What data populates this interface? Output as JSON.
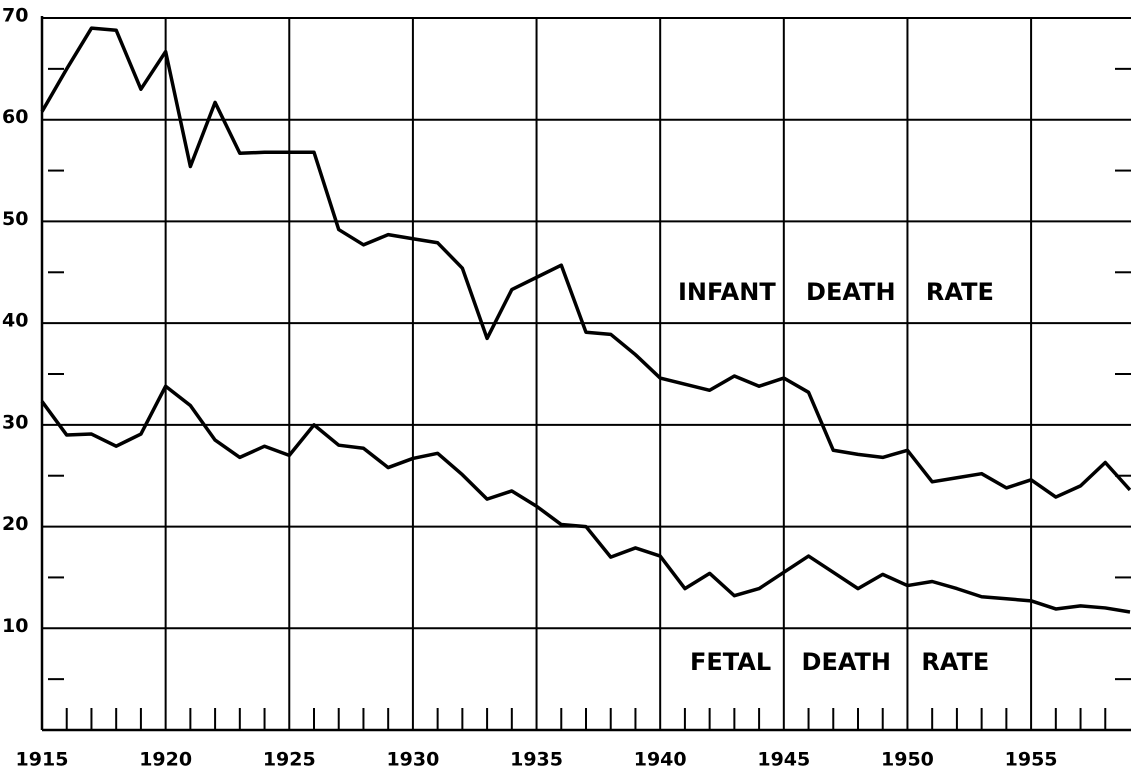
{
  "chart_data": {
    "type": "line",
    "x": [
      1915,
      1916,
      1917,
      1918,
      1919,
      1920,
      1921,
      1922,
      1923,
      1924,
      1925,
      1926,
      1927,
      1928,
      1929,
      1930,
      1931,
      1932,
      1933,
      1934,
      1935,
      1936,
      1937,
      1938,
      1939,
      1940,
      1941,
      1942,
      1943,
      1944,
      1945,
      1946,
      1947,
      1948,
      1949,
      1950,
      1951,
      1952,
      1953,
      1954,
      1955,
      1956,
      1957,
      1958,
      1959
    ],
    "series": [
      {
        "name": "INFANT DEATH RATE",
        "color": "#000000",
        "values": [
          60.8,
          65.0,
          69.0,
          68.8,
          63.0,
          66.7,
          55.4,
          61.7,
          56.7,
          56.8,
          56.8,
          56.8,
          49.2,
          47.7,
          48.7,
          48.3,
          47.9,
          45.4,
          38.5,
          43.3,
          44.5,
          45.7,
          39.1,
          38.9,
          36.9,
          34.6,
          34.0,
          33.4,
          34.8,
          33.8,
          34.6,
          33.2,
          27.5,
          27.1,
          26.8,
          27.5,
          24.4,
          24.8,
          25.2,
          23.8,
          24.6,
          22.9,
          24.0,
          26.3,
          23.6
        ]
      },
      {
        "name": "FETAL DEATH RATE",
        "color": "#000000",
        "values": [
          32.3,
          29.0,
          29.1,
          27.9,
          29.1,
          33.8,
          31.9,
          28.5,
          26.8,
          27.9,
          27.0,
          30.0,
          28.0,
          27.7,
          25.8,
          26.7,
          27.2,
          25.1,
          22.7,
          23.5,
          22.0,
          20.2,
          20.0,
          17.0,
          17.9,
          17.1,
          13.9,
          15.4,
          13.2,
          13.9,
          15.5,
          17.1,
          15.5,
          13.9,
          15.3,
          14.2,
          14.6,
          13.9,
          13.1,
          12.9,
          12.7,
          11.9,
          12.2,
          12.0,
          11.6
        ]
      }
    ],
    "xlim": [
      1915,
      1959
    ],
    "xticks": [
      1915,
      1920,
      1925,
      1930,
      1935,
      1940,
      1945,
      1950,
      1955
    ],
    "xticks_minor": [
      1916,
      1917,
      1918,
      1919,
      1921,
      1922,
      1923,
      1924,
      1926,
      1927,
      1928,
      1929,
      1931,
      1932,
      1933,
      1934,
      1936,
      1937,
      1938,
      1939,
      1941,
      1942,
      1943,
      1944,
      1946,
      1947,
      1948,
      1949,
      1951,
      1952,
      1953,
      1954,
      1956,
      1957,
      1958
    ],
    "ylim": [
      0,
      70
    ],
    "yticks": [
      10,
      20,
      30,
      40,
      50,
      60,
      70
    ],
    "yticks_minor": [
      5,
      15,
      25,
      35,
      45,
      55,
      65
    ],
    "grid": true
  }
}
